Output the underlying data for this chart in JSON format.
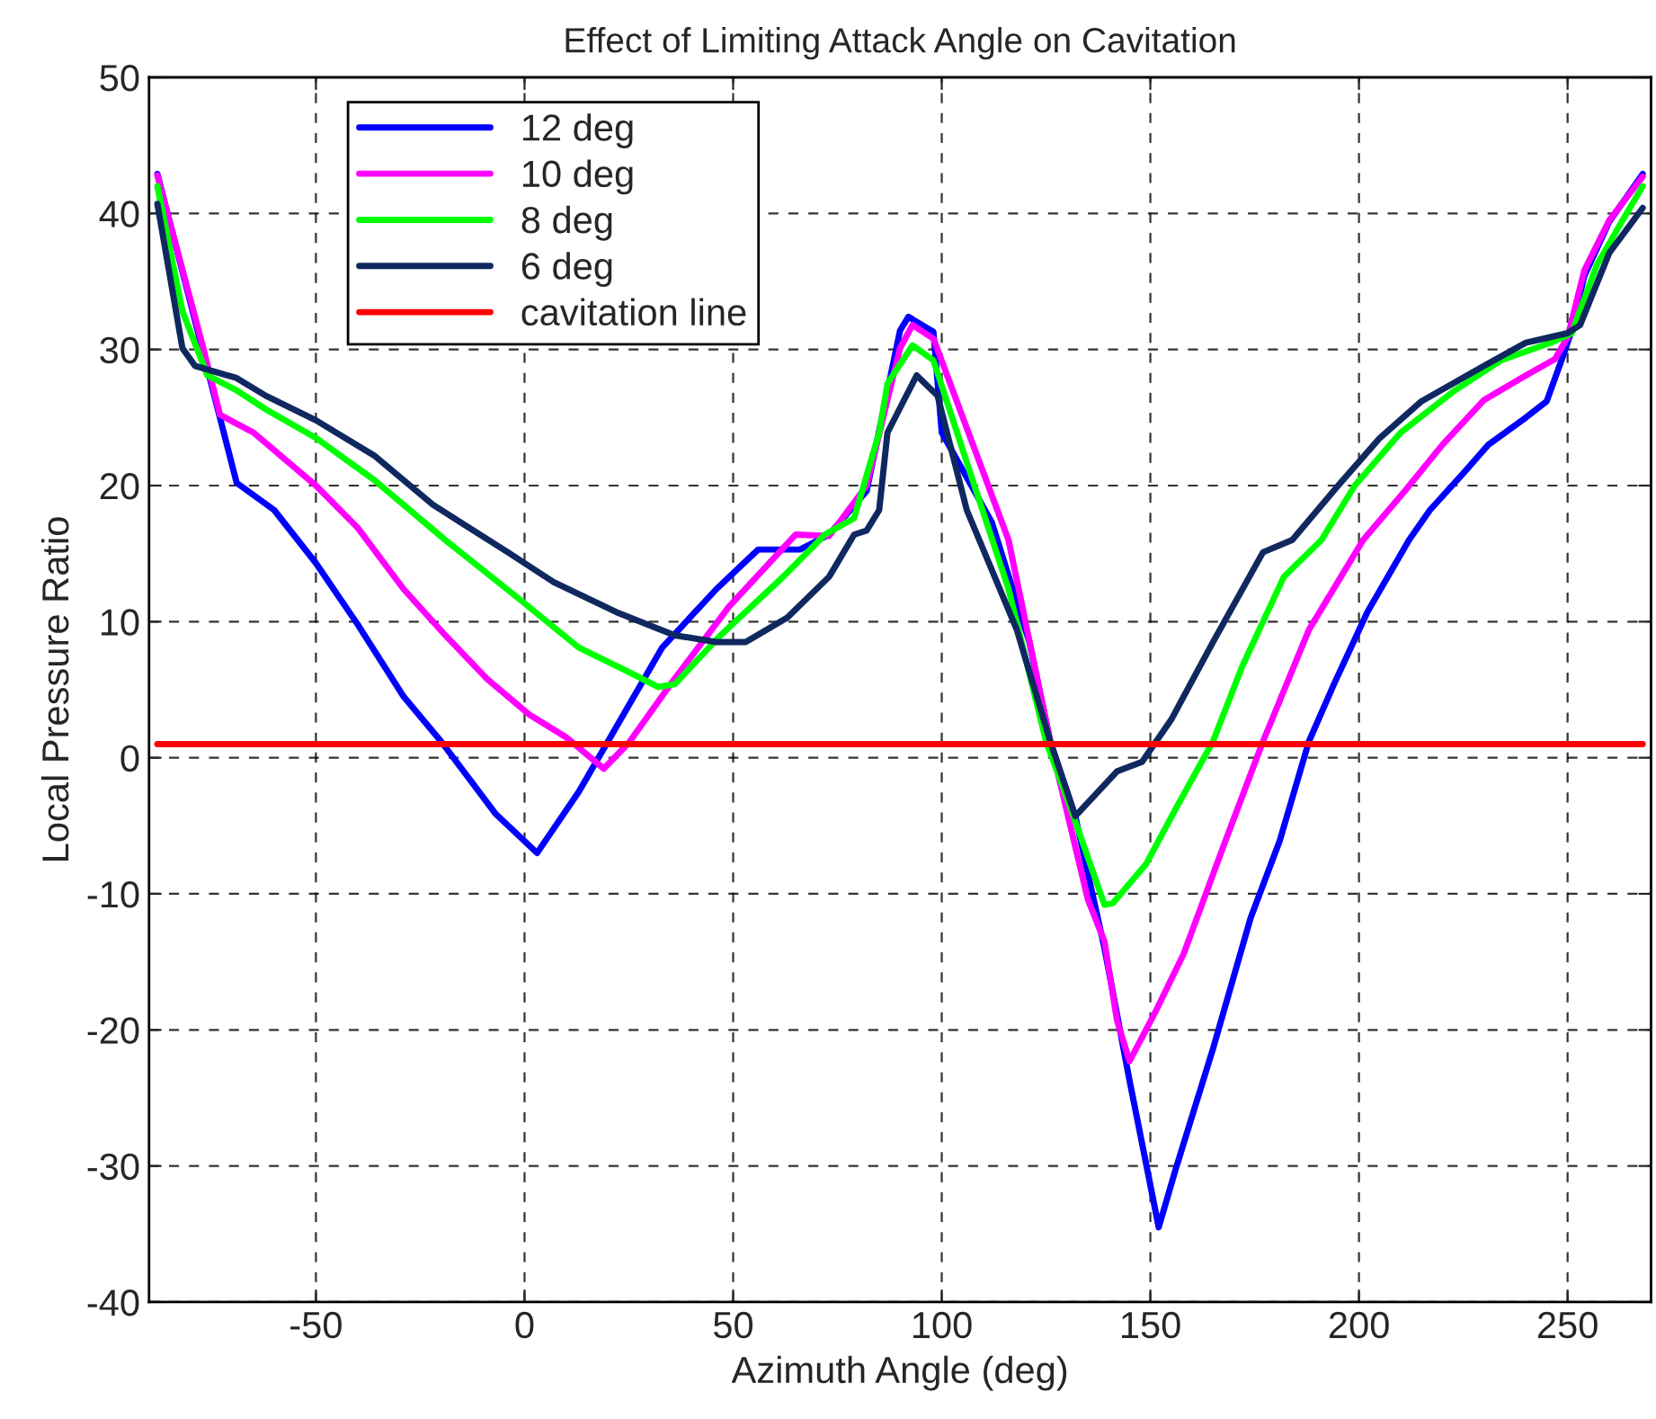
{
  "chart_data": {
    "type": "line",
    "title": "Effect of Limiting Attack Angle on Cavitation",
    "xlabel": "Azimuth Angle (deg)",
    "ylabel": "Local Pressure Ratio",
    "xlim": [
      -90,
      270
    ],
    "ylim": [
      -40,
      50
    ],
    "xticks": [
      -50,
      0,
      50,
      100,
      150,
      200,
      250
    ],
    "yticks": [
      -40,
      -30,
      -20,
      -10,
      0,
      10,
      20,
      30,
      40,
      50
    ],
    "grid": true,
    "legend": "top left",
    "line_style": "solid",
    "marker": "none",
    "series": [
      {
        "name": "12 deg",
        "color": "#0000ff",
        "x": [
          -88,
          -69,
          -60,
          -50,
          -40,
          -29,
          -20,
          -7,
          3,
          13,
          20,
          33,
          46,
          56,
          66,
          73,
          82,
          90,
          92,
          98,
          100,
          112,
          121,
          126,
          132,
          139,
          145,
          152,
          156,
          165,
          174,
          181,
          188,
          194,
          202,
          212,
          217,
          225,
          231,
          240,
          245,
          249,
          251,
          254,
          260,
          268
        ],
        "values": [
          42.9,
          20.2,
          18.2,
          14.3,
          9.8,
          4.5,
          1.2,
          -4.1,
          -7.0,
          -2.5,
          1.2,
          8.1,
          12.4,
          15.3,
          15.3,
          16.4,
          19.6,
          31.4,
          32.4,
          31.3,
          23.9,
          17.3,
          8.5,
          1.2,
          -4.3,
          -14.0,
          -23.7,
          -34.5,
          -30.3,
          -21.4,
          -11.8,
          -6.1,
          1.2,
          5.4,
          10.7,
          16.0,
          18.2,
          20.9,
          23.0,
          25.0,
          26.2,
          29.6,
          31.4,
          35.4,
          39.4,
          42.9
        ]
      },
      {
        "name": "10 deg",
        "color": "#ff00ff",
        "x": [
          -88,
          -77,
          -73,
          -65,
          -50,
          -40,
          -29,
          -19,
          -9,
          1,
          10,
          19,
          25,
          35,
          49,
          65,
          73,
          82,
          90,
          93,
          98,
          116,
          126,
          135,
          139,
          142,
          145,
          151,
          158,
          168,
          177,
          188,
          201,
          211,
          220,
          230,
          240,
          247,
          250,
          254,
          260,
          268
        ],
        "values": [
          42.8,
          30.1,
          25.2,
          23.9,
          20.0,
          16.9,
          12.4,
          9.0,
          5.8,
          3.2,
          1.5,
          -0.8,
          1.1,
          5.4,
          11.1,
          16.4,
          16.3,
          20.0,
          30.1,
          31.8,
          30.8,
          16.0,
          1.2,
          -10.4,
          -13.5,
          -19.3,
          -22.3,
          -18.8,
          -14.4,
          -6.1,
          1.2,
          9.4,
          16.0,
          19.6,
          23.0,
          26.3,
          28.1,
          29.3,
          30.9,
          35.8,
          39.5,
          42.7
        ]
      },
      {
        "name": "8 deg",
        "color": "#00ff00",
        "x": [
          -88,
          -82,
          -76,
          -69,
          -62,
          -50,
          -36,
          -19,
          -1,
          13,
          25,
          32,
          36,
          47,
          62,
          72,
          79,
          85,
          87,
          93,
          98,
          106,
          116,
          125,
          131,
          139,
          141,
          149,
          156,
          165,
          172,
          182,
          191,
          199,
          210,
          223,
          234,
          246,
          251,
          257,
          263,
          268
        ],
        "values": [
          42.0,
          32.8,
          28.1,
          27.0,
          25.6,
          23.5,
          20.4,
          16.0,
          11.6,
          8.1,
          6.3,
          5.2,
          5.4,
          9.0,
          13.3,
          16.4,
          17.6,
          23.9,
          27.5,
          30.3,
          29.2,
          21.7,
          12.4,
          1.2,
          -3.8,
          -10.8,
          -10.7,
          -7.8,
          -3.8,
          1.2,
          6.7,
          13.3,
          16.0,
          20.0,
          23.9,
          27.0,
          29.2,
          30.5,
          31.2,
          36.2,
          39.4,
          42.0
        ]
      },
      {
        "name": "6 deg",
        "color": "#102860",
        "x": [
          -88,
          -82,
          -79,
          -69,
          -62,
          -50,
          -36,
          -22,
          -4,
          7,
          22,
          36,
          46,
          53,
          63,
          73,
          79,
          82,
          85,
          87,
          94,
          99,
          106,
          118,
          126,
          132,
          142,
          148,
          155,
          165,
          177,
          184,
          195,
          205,
          215,
          230,
          240,
          250,
          253,
          260,
          268
        ],
        "values": [
          40.7,
          30.1,
          28.8,
          27.9,
          26.6,
          24.8,
          22.2,
          18.6,
          15.1,
          12.9,
          10.7,
          9.0,
          8.5,
          8.5,
          10.3,
          13.3,
          16.4,
          16.7,
          18.2,
          23.9,
          28.1,
          26.6,
          18.2,
          9.4,
          1.2,
          -4.3,
          -1.0,
          -0.3,
          2.8,
          8.5,
          15.1,
          16.0,
          20.0,
          23.5,
          26.2,
          28.8,
          30.5,
          31.2,
          31.8,
          37.1,
          40.4
        ]
      },
      {
        "name": "cavitation line",
        "color": "#ff0000",
        "x": [
          -88,
          268
        ],
        "values": [
          1,
          1
        ]
      }
    ]
  }
}
